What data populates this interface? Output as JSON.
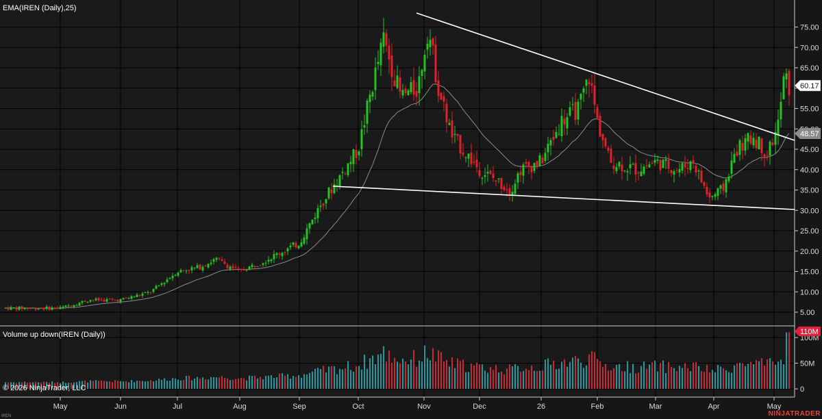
{
  "price_panel": {
    "indicator_label": "EMA(IREN (Daily),25)",
    "last_price_label": "60.17",
    "ema_value_label": "48.57",
    "y_ticks": [
      "75.00",
      "70.00",
      "65.00",
      "60.00",
      "55.00",
      "50.00",
      "45.00",
      "40.00",
      "35.00",
      "30.00",
      "25.00",
      "20.00",
      "15.00",
      "10.00",
      "5.00"
    ],
    "up_color": "#22c322",
    "down_color": "#e0202a",
    "ema_color": "#8c8c8c",
    "trendline_color": "#ffffff"
  },
  "volume_panel": {
    "indicator_label": "Volume up down(IREN (Daily))",
    "last_volume_label": "110M",
    "y_ticks": [
      "100M",
      "50M",
      "0"
    ],
    "up_color": "#1e9aa0",
    "down_color": "#c8283c"
  },
  "x_axis": {
    "labels": [
      "May",
      "Jun",
      "Jul",
      "Aug",
      "Sep",
      "Oct",
      "Nov",
      "Dec",
      "26",
      "Feb",
      "Mar",
      "Apr",
      "May"
    ]
  },
  "footer": {
    "copyright": "© 2026 NinjaTrader, LLC",
    "symbol": "IREN",
    "brand": "NINJATRADER"
  },
  "chart_data": {
    "type": "candlestick",
    "instrument": "IREN",
    "period": "Daily",
    "price_range": [
      0,
      78
    ],
    "volume_range": [
      0,
      115
    ],
    "volume_unit": "M",
    "key_points": [
      {
        "month": "May",
        "close": 6
      },
      {
        "month": "Jun",
        "close": 8
      },
      {
        "month": "Jul",
        "close": 16
      },
      {
        "month": "Aug",
        "close": 16
      },
      {
        "month": "Sep",
        "close": 22
      },
      {
        "month": "Oct",
        "close": 45
      },
      {
        "month": "Nov",
        "close": 68
      },
      {
        "month": "Dec",
        "close": 42
      },
      {
        "month": "26",
        "close": 40
      },
      {
        "month": "Feb",
        "close": 53
      },
      {
        "month": "Mar",
        "close": 38
      },
      {
        "month": "Apr",
        "close": 34
      },
      {
        "month": "May",
        "close": 60.17
      }
    ],
    "ema_last": 48.57,
    "last_close": 60.17,
    "last_volume": 110
  }
}
